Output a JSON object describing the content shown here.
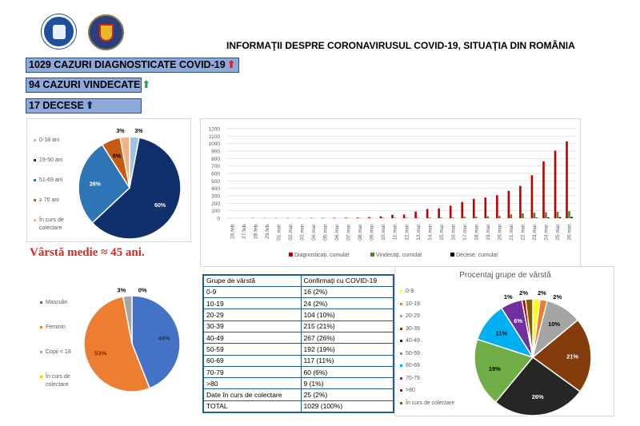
{
  "header": {
    "title": "INFORMAŢII DESPRE CORONAVIRUSUL COVID-19, SITUAŢIA DIN ROMÂNIA",
    "logos": [
      "guvernul-romaniei-seal",
      "ministry-coat-of-arms"
    ]
  },
  "stats": [
    {
      "label": "1029 CAZURI DIAGNOSTICATE COVID-19",
      "icon": "arrow-up-icon",
      "color": "#e0201b"
    },
    {
      "label": "94 CAZURI VINDECATE",
      "icon": "arrow-up-icon",
      "color": "#2e9e5b"
    },
    {
      "label": "17 DECESE",
      "icon": "arrow-up-icon",
      "color": "#10243f"
    }
  ],
  "media_varsta": "Vârstă medie ≈ 45 ani.",
  "chart_data": [
    {
      "type": "pie",
      "title": "",
      "legend_position": "left",
      "categories": [
        "0-18 ani",
        "19-50 ani",
        "51-69 ani",
        "≥ 70 ani",
        "În curs de colectare"
      ],
      "values": [
        3,
        60,
        28,
        6,
        3
      ],
      "labels": [
        "3%",
        "60%",
        "28%",
        "6%",
        "3%"
      ],
      "colors": [
        "#9dc3e6",
        "#10306b",
        "#2e75b6",
        "#c55a11",
        "#f4b183"
      ]
    },
    {
      "type": "bar",
      "title": "",
      "legend_position": "bottom",
      "grid": true,
      "ylim": [
        0,
        1200
      ],
      "yticks": [
        0,
        100,
        200,
        300,
        400,
        500,
        600,
        700,
        800,
        900,
        1000,
        1100,
        1200
      ],
      "categories": [
        "26.feb.",
        "27.feb.",
        "28.feb.",
        "29.feb.",
        "01.mar.",
        "02.mar.",
        "03.mar.",
        "04.mar.",
        "05.mar.",
        "06.mar.",
        "07.mar.",
        "08.mar.",
        "09.mar.",
        "10.mar.",
        "11.mar.",
        "12.mar.",
        "13.mar.",
        "14.mar.",
        "15.mar.",
        "16.mar.",
        "17.mar.",
        "18.mar.",
        "19.mar.",
        "20.mar.",
        "21.mar.",
        "22.mar.",
        "23.mar.",
        "24.mar.",
        "25.mar.",
        "26.mar."
      ],
      "series": [
        {
          "name": "Diagnosticaţi, cumulat",
          "color": "#c00000",
          "values": [
            1,
            1,
            3,
            3,
            3,
            3,
            3,
            4,
            4,
            6,
            7,
            9,
            15,
            25,
            45,
            49,
            89,
            123,
            131,
            168,
            217,
            260,
            277,
            308,
            367,
            433,
            576,
            762,
            906,
            1029
          ]
        },
        {
          "name": "Vindecaţi, cumulat",
          "color": "#548235",
          "values": [
            0,
            0,
            0,
            0,
            0,
            0,
            0,
            1,
            1,
            1,
            3,
            3,
            3,
            6,
            6,
            6,
            6,
            9,
            9,
            9,
            19,
            19,
            25,
            31,
            52,
            64,
            73,
            79,
            86,
            94
          ]
        },
        {
          "name": "Decese, cumulat",
          "color": "#000000",
          "values": [
            0,
            0,
            0,
            0,
            0,
            0,
            0,
            0,
            0,
            0,
            0,
            0,
            0,
            0,
            0,
            0,
            0,
            0,
            0,
            0,
            0,
            0,
            0,
            0,
            0,
            2,
            7,
            11,
            14,
            17
          ]
        }
      ]
    },
    {
      "type": "pie",
      "title": "",
      "legend_position": "left",
      "categories": [
        "Masculin",
        "Feminin",
        "Copii < 18",
        "În curs de colectare"
      ],
      "values": [
        44,
        53,
        3,
        0
      ],
      "labels": [
        "44%",
        "53%",
        "3%",
        "0%"
      ],
      "colors": [
        "#4472c4",
        "#ed7d31",
        "#a5a5a5",
        "#ffc000"
      ]
    },
    {
      "type": "table",
      "columns": [
        "Grupe de vârstă",
        "Confirmaţi cu COVID-19"
      ],
      "rows": [
        [
          "0-9",
          "16 (2%)"
        ],
        [
          "10-19",
          "24 (2%)"
        ],
        [
          "20-29",
          "104 (10%)"
        ],
        [
          "30-39",
          "215 (21%)"
        ],
        [
          "40-49",
          "267 (26%)"
        ],
        [
          "50-59",
          "192 (19%)"
        ],
        [
          "60-69",
          "117 (11%)"
        ],
        [
          "70-79",
          "60 (6%)"
        ],
        [
          ">80",
          "9 (1%)"
        ],
        [
          "Date în curs de colectare",
          "25 (2%)"
        ],
        [
          "TOTAL",
          "1029 (100%)"
        ]
      ]
    },
    {
      "type": "pie",
      "title": "Procentaj grupe de vârstă",
      "legend_position": "left",
      "categories": [
        "0-9",
        "10-19",
        "20-29",
        "30-39",
        "40-49",
        "50-59",
        "60-69",
        "70-79",
        ">80",
        "În curs de colectare"
      ],
      "values": [
        2,
        2,
        10,
        21,
        26,
        19,
        11,
        6,
        1,
        2
      ],
      "labels": [
        "2%",
        "2%",
        "10%",
        "21%",
        "26%",
        "19%",
        "11%",
        "6%",
        "1%",
        "2%"
      ],
      "colors": [
        "#ffff00",
        "#ed7d31",
        "#a5a5a5",
        "#843c0c",
        "#262626",
        "#70ad47",
        "#00b0f0",
        "#7030a0",
        "#c00000",
        "#7f6000"
      ]
    }
  ]
}
